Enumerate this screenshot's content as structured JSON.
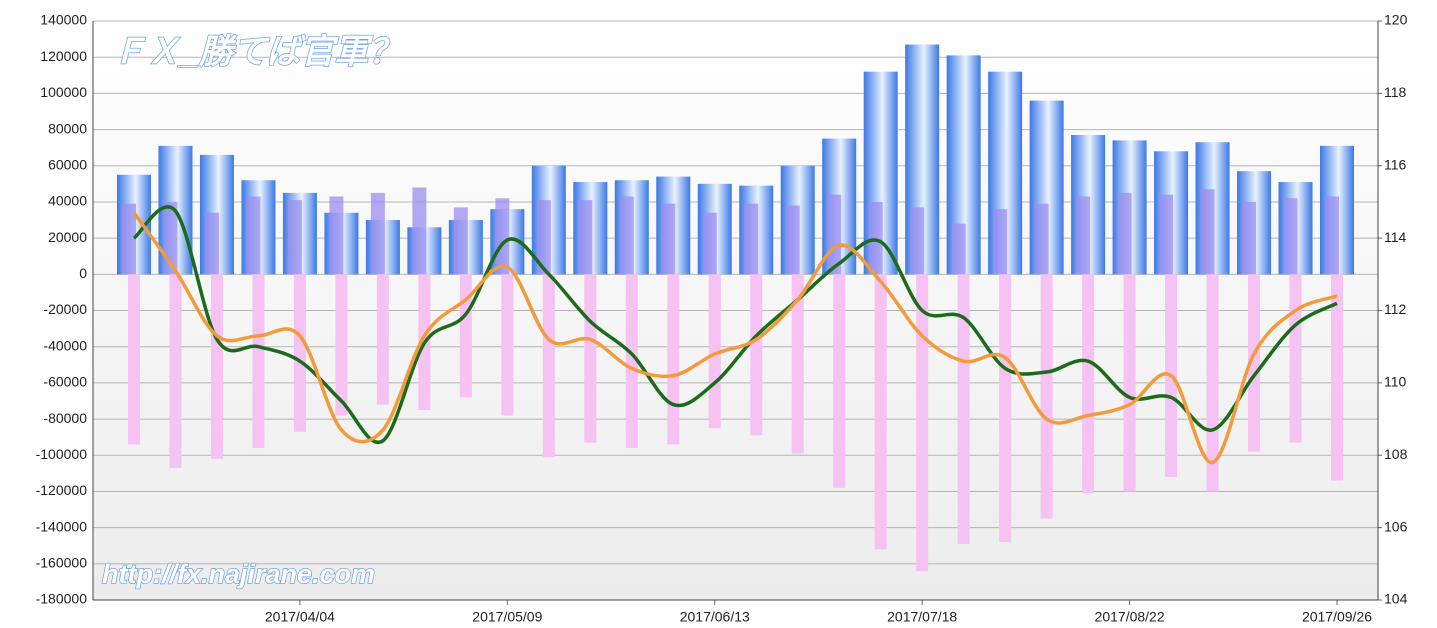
{
  "chart_data": {
    "type": "combo",
    "watermark_title": "ＦＸ_勝てば官軍？",
    "watermark_url": "http://fx.najirane.com",
    "categories": [
      null,
      null,
      null,
      null,
      "2017/04/04",
      null,
      null,
      null,
      null,
      "2017/05/09",
      null,
      null,
      null,
      null,
      "2017/06/13",
      null,
      null,
      null,
      null,
      "2017/07/18",
      null,
      null,
      null,
      null,
      "2017/08/22",
      null,
      null,
      null,
      null,
      "2017/09/26"
    ],
    "ylim": [
      -180000,
      140000
    ],
    "yticks": [
      -180000,
      -160000,
      -140000,
      -120000,
      -100000,
      -80000,
      -60000,
      -40000,
      -20000,
      0,
      20000,
      40000,
      60000,
      80000,
      100000,
      120000,
      140000
    ],
    "y2lim": [
      104,
      120
    ],
    "y2ticks": [
      104,
      106,
      108,
      110,
      112,
      114,
      116,
      118,
      120
    ],
    "grid": true,
    "series": [
      {
        "type": "bar",
        "color": "#3a7be0",
        "values": [
          55000,
          71000,
          66000,
          52000,
          45000,
          34000,
          30000,
          26000,
          30000,
          36000,
          60000,
          51000,
          52000,
          54000,
          50000,
          49000,
          60000,
          75000,
          112000,
          127000,
          121000,
          112000,
          96000,
          77000,
          74000,
          68000,
          73000,
          57000,
          51000,
          71000
        ]
      },
      {
        "type": "bar",
        "color": "#9b8df0",
        "values": [
          39000,
          40000,
          34000,
          43000,
          41000,
          43000,
          45000,
          48000,
          37000,
          42000,
          41000,
          41000,
          43000,
          39000,
          34000,
          39000,
          38000,
          44000,
          40000,
          37000,
          28000,
          36000,
          39000,
          43000,
          45000,
          44000,
          47000,
          40000,
          42000,
          43000
        ]
      },
      {
        "type": "bar",
        "color": "#f5c2f3",
        "values": [
          -94000,
          -107000,
          -102000,
          -96000,
          -87000,
          -78000,
          -72000,
          -75000,
          -68000,
          -78000,
          -101000,
          -93000,
          -96000,
          -94000,
          -85000,
          -89000,
          -99000,
          -118000,
          -152000,
          -164000,
          -149000,
          -148000,
          -135000,
          -121000,
          -120000,
          -112000,
          -120000,
          -98000,
          -93000,
          -114000
        ]
      },
      {
        "type": "line",
        "axis": "y2",
        "color": "#1b6b1b",
        "values": [
          114.0,
          114.75,
          111.2,
          111.0,
          110.6,
          109.5,
          108.4,
          111.1,
          111.9,
          113.95,
          113.0,
          111.7,
          110.8,
          109.4,
          110.0,
          111.3,
          112.3,
          113.3,
          113.9,
          112.0,
          111.8,
          110.4,
          110.3,
          110.6,
          109.6,
          109.6,
          108.7,
          110.2,
          111.6,
          112.2
        ]
      },
      {
        "type": "line",
        "axis": "y2",
        "color": "#f39a3d",
        "values": [
          114.7,
          113.1,
          111.3,
          111.3,
          111.3,
          108.7,
          108.7,
          111.3,
          112.3,
          113.2,
          111.2,
          111.2,
          110.4,
          110.2,
          110.8,
          111.2,
          112.3,
          113.8,
          112.8,
          111.3,
          110.6,
          110.7,
          109.0,
          109.1,
          109.4,
          110.2,
          107.8,
          110.8,
          112.0,
          112.4
        ]
      }
    ]
  }
}
